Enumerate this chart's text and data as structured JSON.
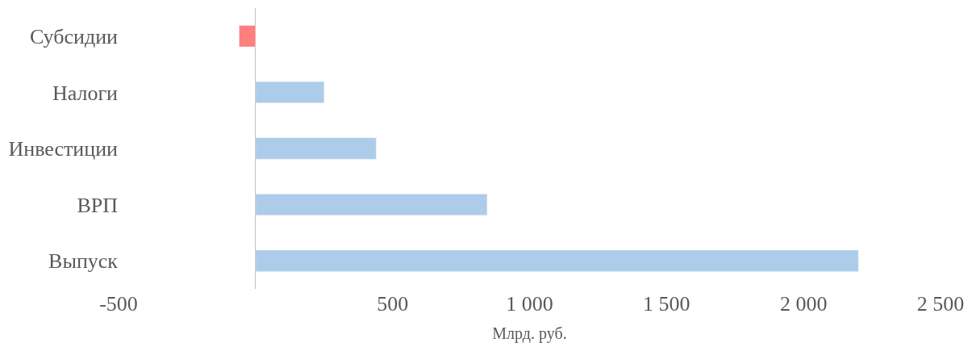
{
  "chart_data": {
    "type": "bar",
    "orientation": "horizontal",
    "categories": [
      "Субсидии",
      "Налоги",
      "Инвестиции",
      "ВРП",
      "Выпуск"
    ],
    "values": [
      -60,
      250,
      440,
      845,
      2200
    ],
    "colors": [
      "#ff7f7f",
      "#adcce9",
      "#adcce9",
      "#adcce9",
      "#adcce9"
    ],
    "xlabel": "Млрд. руб.",
    "xlim": [
      -500,
      2500
    ],
    "xticks": [
      -500,
      500,
      {
        "value": 1000,
        "label": "1 000"
      },
      {
        "value": 1500,
        "label": "1 500"
      },
      {
        "value": 2000,
        "label": "2 000"
      },
      {
        "value": 2500,
        "label": "2 500"
      }
    ],
    "legend": false
  }
}
